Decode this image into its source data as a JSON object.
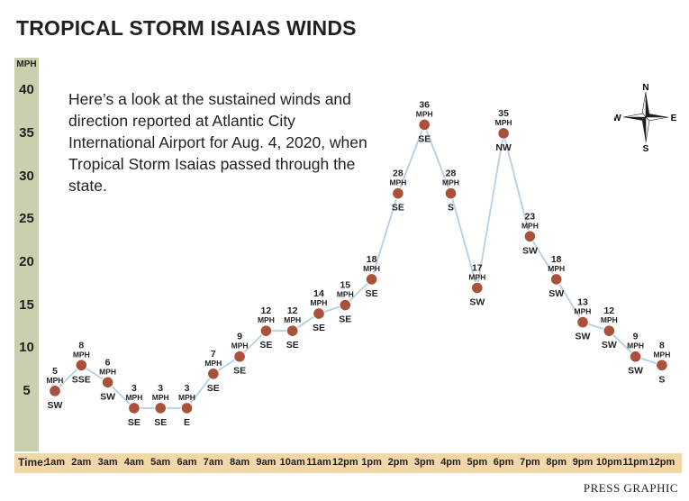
{
  "title": "TROPICAL STORM ISAIAS WINDS",
  "description": "Here’s a look at the sustained winds and direction reported at Atlantic City International Airport for Aug. 4, 2020, when Tropical Storm Isaias passed through the state.",
  "credit": "PRESS GRAPHIC",
  "compass": {
    "n": "N",
    "s": "S",
    "e": "E",
    "w": "W"
  },
  "colors": {
    "line": "#b9d3e6",
    "point": "#a9513a",
    "y_bar": "#c9d0b0",
    "x_bar": "#f2d7a8"
  },
  "chart_data": {
    "type": "line",
    "title": "TROPICAL STORM ISAIAS WINDS",
    "ylabel": "MPH",
    "xlabel": "Time:",
    "ylim": [
      0,
      40
    ],
    "yticks": [
      "5",
      "10",
      "15",
      "20",
      "25",
      "30",
      "35",
      "40"
    ],
    "unit_label": "MPH",
    "categories": [
      "1am",
      "2am",
      "3am",
      "4am",
      "5am",
      "6am",
      "7am",
      "8am",
      "9am",
      "10am",
      "11am",
      "12pm",
      "1pm",
      "2pm",
      "3pm",
      "4pm",
      "5pm",
      "6pm",
      "7pm",
      "8pm",
      "9pm",
      "10pm",
      "11pm",
      "12pm"
    ],
    "values": [
      5,
      8,
      6,
      3,
      3,
      3,
      7,
      9,
      12,
      12,
      14,
      15,
      18,
      28,
      36,
      28,
      17,
      35,
      23,
      18,
      13,
      12,
      9,
      8
    ],
    "directions": [
      "SW",
      "SSE",
      "SW",
      "SE",
      "SE",
      "E",
      "SE",
      "SE",
      "SE",
      "SE",
      "SE",
      "SE",
      "SE",
      "SE",
      "SE",
      "S",
      "SW",
      "NW",
      "SW",
      "SW",
      "SW",
      "SW",
      "SW",
      "S"
    ],
    "grid": false
  }
}
